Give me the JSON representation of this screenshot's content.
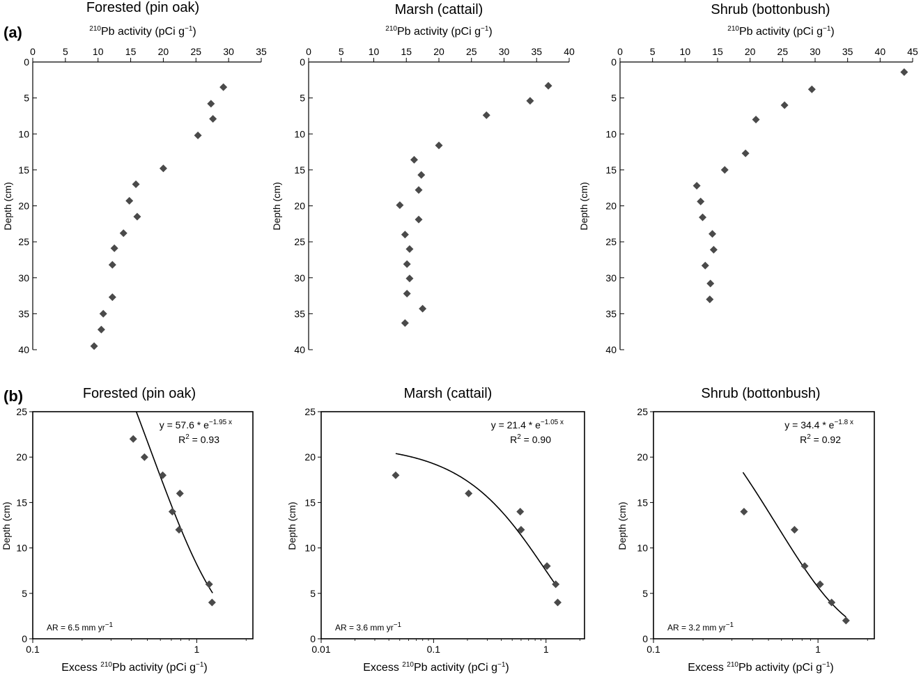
{
  "panel_labels": [
    "(a)",
    "(b)"
  ],
  "colors": {
    "marker": "#4a4a4a",
    "axis": "#000000",
    "fit_line": "#000000"
  },
  "chart_data": [
    {
      "id": "a1",
      "panel": "(a)",
      "type": "scatter",
      "title": "Forested (pin oak)",
      "xlabel": {
        "isotope": "210",
        "rest": "Pb activity (pCi g",
        "unit_sup": "−1",
        "close": ")"
      },
      "ylabel": "Depth (cm)",
      "xlim": [
        0,
        35
      ],
      "ylim": [
        0,
        40
      ],
      "y_inverted": true,
      "x_axis_position": "top",
      "xticks": [
        0,
        5,
        10,
        15,
        20,
        25,
        30,
        35
      ],
      "yticks": [
        0,
        5,
        10,
        15,
        20,
        25,
        30,
        35,
        40
      ],
      "x": [
        29.2,
        27.3,
        27.6,
        25.3,
        20.0,
        15.8,
        14.8,
        16.0,
        13.9,
        12.5,
        12.2,
        12.2,
        10.8,
        10.5,
        9.4
      ],
      "y": [
        3.5,
        5.8,
        7.9,
        10.2,
        14.8,
        17.0,
        19.3,
        21.5,
        23.8,
        25.9,
        28.2,
        32.7,
        35.0,
        37.2,
        39.5
      ]
    },
    {
      "id": "a2",
      "panel": "(a)",
      "type": "scatter",
      "title": "Marsh (cattail)",
      "xlabel": {
        "isotope": "210",
        "rest": "Pb activity (pCi g",
        "unit_sup": "−1",
        "close": ")"
      },
      "ylabel": "Depth (cm)",
      "xlim": [
        0,
        40
      ],
      "ylim": [
        0,
        40
      ],
      "y_inverted": true,
      "x_axis_position": "top",
      "xticks": [
        0,
        5,
        10,
        15,
        20,
        25,
        30,
        35,
        40
      ],
      "yticks": [
        0,
        5,
        10,
        15,
        20,
        25,
        30,
        35,
        40
      ],
      "x": [
        36.8,
        34.0,
        27.3,
        20.0,
        16.2,
        17.3,
        16.9,
        14.0,
        16.9,
        14.8,
        15.5,
        15.1,
        15.5,
        15.1,
        17.5,
        14.8
      ],
      "y": [
        3.3,
        5.4,
        7.4,
        11.6,
        13.6,
        15.7,
        17.8,
        19.9,
        21.9,
        24.0,
        26.0,
        28.1,
        30.1,
        32.2,
        34.3,
        36.3
      ]
    },
    {
      "id": "a3",
      "panel": "(a)",
      "type": "scatter",
      "title": "Shrub (bottonbush)",
      "xlabel": {
        "isotope": "210",
        "rest": "Pb activity (pCi g",
        "unit_sup": "−1",
        "close": ")"
      },
      "ylabel": "Depth (cm)",
      "xlim": [
        0,
        45
      ],
      "ylim": [
        0,
        40
      ],
      "y_inverted": true,
      "x_axis_position": "top",
      "xticks": [
        0,
        5,
        10,
        15,
        20,
        25,
        30,
        35,
        40,
        45
      ],
      "yticks": [
        0,
        5,
        10,
        15,
        20,
        25,
        30,
        35,
        40
      ],
      "x": [
        43.7,
        29.5,
        25.3,
        20.9,
        19.3,
        16.1,
        11.8,
        12.4,
        12.7,
        14.2,
        14.4,
        13.1,
        13.9,
        13.8
      ],
      "y": [
        1.4,
        3.8,
        6.0,
        8.0,
        12.7,
        15.0,
        17.2,
        19.4,
        21.6,
        23.9,
        26.1,
        28.3,
        30.8,
        33.0
      ]
    },
    {
      "id": "b1",
      "panel": "(b)",
      "type": "scatter",
      "title": "Forested (pin oak)",
      "xlabel": {
        "prefix": "Excess ",
        "isotope": "210",
        "rest": "Pb activity (pCi g",
        "unit_sup": "−1",
        "close": ")"
      },
      "ylabel": "Depth (cm)",
      "x_scale": "log",
      "xlim": [
        0.1,
        2.2
      ],
      "ylim": [
        0,
        25
      ],
      "xticks": [
        0.1,
        1
      ],
      "xtick_labels": [
        "0.1",
        "1"
      ],
      "yticks": [
        0,
        5,
        10,
        15,
        20,
        25
      ],
      "x": [
        0.41,
        0.48,
        0.62,
        0.79,
        0.71,
        0.78,
        1.19,
        1.24
      ],
      "y": [
        22,
        20,
        18,
        16,
        14,
        12,
        6,
        4
      ],
      "fit": {
        "a": 57.6,
        "b": 1.95,
        "x_range": [
          0.405,
          1.25
        ]
      },
      "equation": {
        "lhs": "y = 57.6 * e",
        "exp": "−1.95 x"
      },
      "r2": {
        "lhs": "R",
        "sup": "2",
        "rhs": " = 0.93"
      },
      "ar_label": {
        "text": "AR = 6.5 mm yr",
        "sup": "−1"
      }
    },
    {
      "id": "b2",
      "panel": "(b)",
      "type": "scatter",
      "title": "Marsh (cattail)",
      "xlabel": {
        "prefix": "Excess ",
        "isotope": "210",
        "rest": "Pb activity (pCi g",
        "unit_sup": "−1",
        "close": ")"
      },
      "ylabel": "Depth (cm)",
      "x_scale": "log",
      "xlim": [
        0.01,
        2.2
      ],
      "ylim": [
        0,
        25
      ],
      "xticks": [
        0.01,
        0.1,
        1
      ],
      "xtick_labels": [
        "0.01",
        "0.1",
        "1"
      ],
      "yticks": [
        0,
        5,
        10,
        15,
        20,
        25
      ],
      "x": [
        0.046,
        0.205,
        0.59,
        0.6,
        1.02,
        1.22,
        1.27
      ],
      "y": [
        18,
        16,
        14,
        12,
        8,
        6,
        4
      ],
      "fit": {
        "a": 21.4,
        "b": 1.05,
        "x_range": [
          0.046,
          1.23
        ]
      },
      "equation": {
        "lhs": "y = 21.4 * e",
        "exp": "−1.05 x"
      },
      "r2": {
        "lhs": "R",
        "sup": "2",
        "rhs": " = 0.90"
      },
      "ar_label": {
        "text": "AR = 3.6 mm yr",
        "sup": "−1"
      }
    },
    {
      "id": "b3",
      "panel": "(b)",
      "type": "scatter",
      "title": "Shrub (bottonbush)",
      "xlabel": {
        "prefix": "Excess ",
        "isotope": "210",
        "rest": "Pb activity (pCi g",
        "unit_sup": "−1",
        "close": ")"
      },
      "ylabel": "Depth (cm)",
      "x_scale": "log",
      "xlim": [
        0.1,
        2.2
      ],
      "ylim": [
        0,
        25
      ],
      "xticks": [
        0.1,
        1
      ],
      "xtick_labels": [
        "0.1",
        "1"
      ],
      "yticks": [
        0,
        5,
        10,
        15,
        20,
        25
      ],
      "x": [
        0.355,
        0.72,
        0.83,
        1.03,
        1.21,
        1.48
      ],
      "y": [
        14,
        12,
        8,
        6,
        4,
        2
      ],
      "fit": {
        "a": 34.4,
        "b": 1.8,
        "x_range": [
          0.35,
          1.48
        ]
      },
      "equation": {
        "lhs": "y = 34.4 * e",
        "exp": "−1.8 x"
      },
      "r2": {
        "lhs": "R",
        "sup": "2",
        "rhs": " = 0.92"
      },
      "ar_label": {
        "text": "AR = 3.2 mm yr",
        "sup": "−1"
      }
    }
  ]
}
